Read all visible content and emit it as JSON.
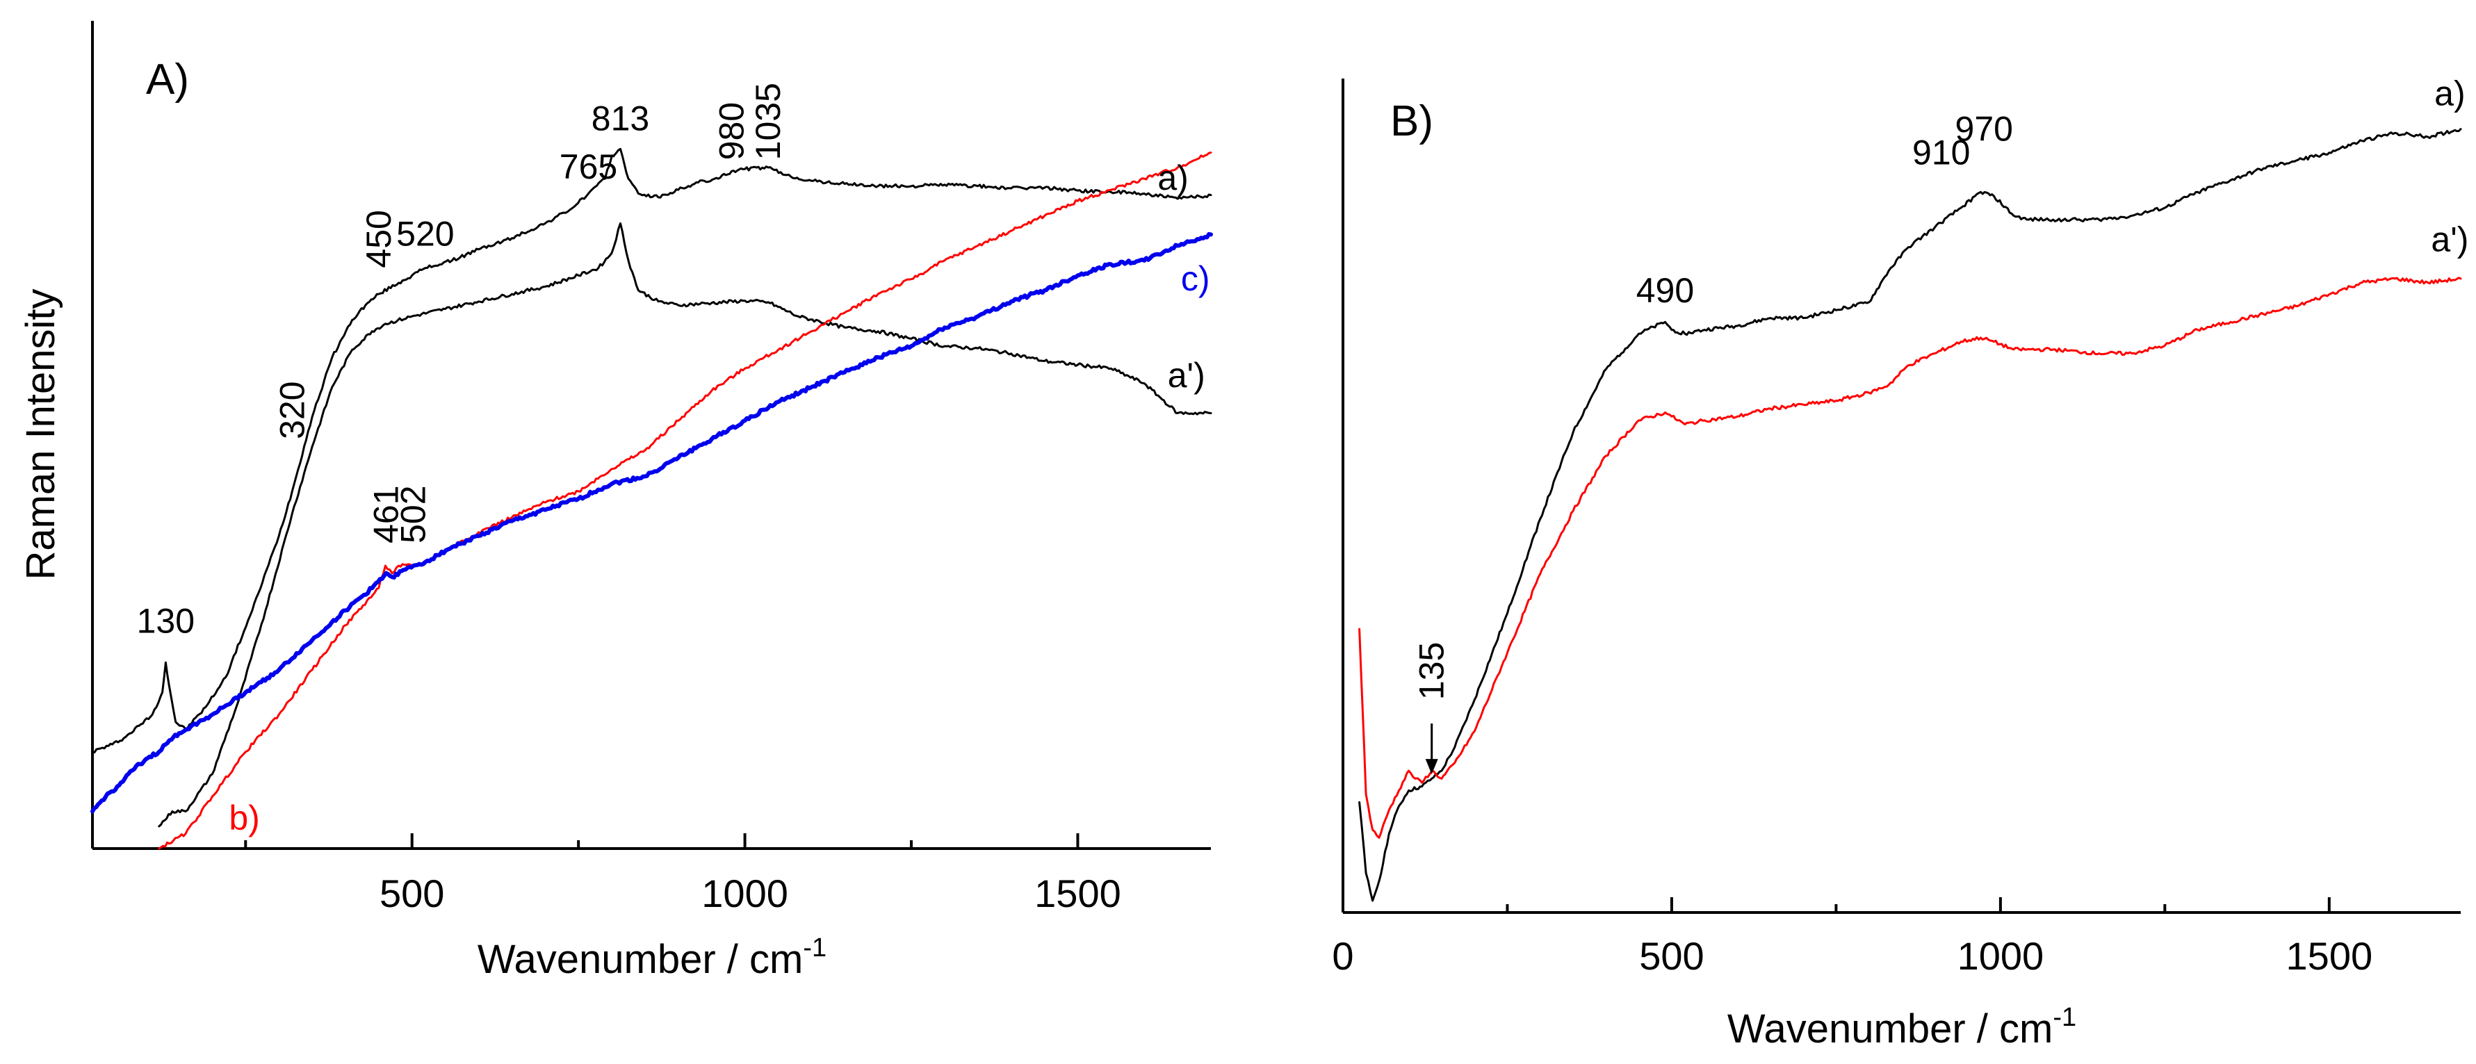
{
  "chart_data": [
    {
      "type": "line",
      "panel": "A)",
      "xlabel": "Wavenumber  /  cm",
      "xlabel_sup": "-1",
      "ylabel": "Raman  Intensity",
      "xlim": [
        20,
        1700
      ],
      "ylim": [
        0,
        100
      ],
      "x_ticks": [
        500,
        1000,
        1500
      ],
      "x_tick_labels": [
        "500",
        "1000",
        "1500"
      ],
      "x_minor_ticks": [
        250,
        750,
        1250
      ],
      "series": [
        {
          "name": "a)",
          "color": "#000000",
          "width": 3,
          "x": [
            20,
            50,
            70,
            90,
            110,
            125,
            130,
            135,
            145,
            160,
            190,
            220,
            260,
            300,
            320,
            350,
            380,
            410,
            430,
            450,
            480,
            500,
            520,
            560,
            600,
            650,
            700,
            740,
            765,
            790,
            800,
            813,
            825,
            840,
            870,
            900,
            930,
            960,
            980,
            1000,
            1035,
            1060,
            1100,
            1150,
            1200,
            1250,
            1300,
            1350,
            1400,
            1450,
            1500,
            1550,
            1600,
            1650,
            1700
          ],
          "y": [
            13,
            14,
            15,
            16.5,
            18,
            21,
            25,
            22,
            17,
            16,
            19,
            23,
            32,
            42,
            48,
            58,
            66,
            71,
            73,
            74.5,
            76,
            77,
            78,
            79,
            80.5,
            82,
            84,
            86,
            88,
            90,
            93,
            94,
            90,
            88,
            87.5,
            88.5,
            89.5,
            90,
            91,
            91.3,
            91.5,
            90.5,
            89.7,
            89.3,
            89,
            89,
            89.2,
            89,
            88.7,
            88.8,
            88.4,
            88.2,
            88,
            87.3,
            87.8
          ]
        },
        {
          "name": "a')",
          "color": "#000000",
          "width": 3,
          "x": [
            120,
            140,
            160,
            200,
            240,
            280,
            320,
            350,
            380,
            410,
            440,
            460,
            500,
            550,
            600,
            650,
            700,
            750,
            780,
            800,
            813,
            825,
            840,
            870,
            900,
            950,
            1000,
            1035,
            1080,
            1150,
            1200,
            1250,
            1300,
            1350,
            1400,
            1450,
            1500,
            1550,
            1600,
            1650,
            1700
          ],
          "y": [
            3,
            5,
            5,
            10,
            20,
            32,
            45,
            54,
            62,
            67,
            69.5,
            70.5,
            71.5,
            72.5,
            73.5,
            74.5,
            75.5,
            77,
            78,
            80,
            84,
            79,
            75,
            73.5,
            73,
            73.3,
            73.6,
            73.4,
            71.5,
            70,
            69.5,
            68.5,
            67.5,
            67.2,
            66.5,
            65.5,
            65,
            64.5,
            62.5,
            58.5,
            58.5
          ]
        },
        {
          "name": "b)",
          "color": "#ff0000",
          "width": 3,
          "x": [
            120,
            160,
            200,
            250,
            300,
            350,
            400,
            450,
            460,
            470,
            480,
            500,
            520,
            560,
            600,
            650,
            700,
            750,
            800,
            850,
            900,
            950,
            1000,
            1050,
            1100,
            1150,
            1200,
            1250,
            1300,
            1350,
            1400,
            1450,
            1500,
            1550,
            1600,
            1650,
            1700
          ],
          "y": [
            0,
            2,
            7,
            13,
            18,
            24,
            30,
            35,
            38,
            37,
            38,
            38,
            38.5,
            40.5,
            42.5,
            44.5,
            46.5,
            48,
            51,
            53.5,
            57.5,
            61.5,
            64.5,
            67,
            69.5,
            72,
            74.5,
            76.5,
            79,
            81,
            83,
            85,
            87,
            88.5,
            90,
            91.5,
            93.5
          ]
        },
        {
          "name": "c)",
          "color": "#0000ee",
          "width": 6,
          "x": [
            20,
            40,
            60,
            80,
            100,
            120,
            130,
            150,
            200,
            250,
            300,
            350,
            400,
            440,
            461,
            470,
            502,
            520,
            560,
            600,
            650,
            700,
            750,
            800,
            850,
            900,
            950,
            1000,
            1050,
            1100,
            1150,
            1200,
            1250,
            1300,
            1350,
            1400,
            1450,
            1500,
            1550,
            1600,
            1650,
            1700
          ],
          "y": [
            5,
            7,
            8.5,
            10.5,
            12,
            13,
            14,
            15.5,
            18,
            21,
            24,
            28,
            32,
            35,
            37,
            36.5,
            38,
            38.5,
            40.5,
            42,
            44,
            45.5,
            47,
            49,
            50,
            52.5,
            55,
            57.5,
            60,
            62,
            64,
            66,
            67.5,
            70,
            71.5,
            73.5,
            75,
            77,
            78.5,
            79,
            81,
            82.5
          ]
        }
      ],
      "annotations": [
        {
          "text": "130",
          "x": 130,
          "y": 29,
          "rotate": false
        },
        {
          "text": "320",
          "x": 320,
          "y": 55,
          "rotate": true
        },
        {
          "text": "450",
          "x": 450,
          "y": 78,
          "rotate": true
        },
        {
          "text": "520",
          "x": 520,
          "y": 81,
          "rotate": false
        },
        {
          "text": "765",
          "x": 765,
          "y": 90,
          "rotate": false
        },
        {
          "text": "813",
          "x": 813,
          "y": 96.5,
          "rotate": false
        },
        {
          "text": "980",
          "x": 980,
          "y": 92.5,
          "rotate": true
        },
        {
          "text": "1035",
          "x": 1035,
          "y": 92.5,
          "rotate": true
        },
        {
          "text": "461",
          "x": 461,
          "y": 41,
          "rotate": true
        },
        {
          "text": "502",
          "x": 502,
          "y": 41,
          "rotate": true
        }
      ],
      "series_labels": [
        {
          "text": "a)",
          "x": 1620,
          "y": 88.5,
          "color": "#000000"
        },
        {
          "text": "c)",
          "x": 1655,
          "y": 75,
          "color": "#0000ee"
        },
        {
          "text": "a')",
          "x": 1635,
          "y": 62,
          "color": "#000000"
        },
        {
          "text": "b)",
          "x": 225,
          "y": 2.5,
          "color": "#ff0000"
        }
      ]
    },
    {
      "type": "line",
      "panel": "B)",
      "xlabel": "Wavenumber  /  cm",
      "xlabel_sup": "-1",
      "ylabel": "",
      "xlim": [
        0,
        1700
      ],
      "ylim": [
        0,
        100
      ],
      "x_ticks": [
        0,
        500,
        1000,
        1500
      ],
      "x_tick_labels": [
        "0",
        "500",
        "1000",
        "1500"
      ],
      "x_minor_ticks": [
        250,
        750,
        1250
      ],
      "series": [
        {
          "name": "a)",
          "color": "#000000",
          "width": 3,
          "x": [
            25,
            35,
            45,
            55,
            70,
            85,
            100,
            120,
            135,
            150,
            170,
            200,
            250,
            300,
            350,
            400,
            450,
            490,
            500,
            520,
            550,
            600,
            650,
            700,
            750,
            800,
            830,
            860,
            900,
            940,
            970,
            990,
            1020,
            1040,
            1080,
            1150,
            1200,
            1250,
            1300,
            1350,
            1400,
            1450,
            1500,
            1550,
            1600,
            1650,
            1700
          ],
          "y": [
            14,
            5,
            1.5,
            4,
            10,
            13.5,
            15.5,
            16,
            17,
            18,
            21,
            27,
            38,
            50,
            61,
            69,
            73.5,
            75,
            74,
            73.5,
            74,
            74.5,
            75.5,
            75.5,
            76.5,
            77.5,
            81.5,
            84.5,
            87,
            89.5,
            91.5,
            91,
            88.5,
            88,
            88,
            88,
            88.5,
            89.5,
            91.5,
            93,
            94.5,
            95.5,
            96.5,
            98,
            99,
            98.5,
            99.5
          ]
        },
        {
          "name": "a')",
          "color": "#ff0000",
          "width": 3,
          "x": [
            25,
            35,
            45,
            55,
            70,
            85,
            100,
            110,
            120,
            135,
            150,
            170,
            200,
            250,
            300,
            350,
            400,
            450,
            490,
            500,
            520,
            550,
            600,
            650,
            700,
            750,
            800,
            830,
            860,
            900,
            940,
            970,
            990,
            1020,
            1040,
            1080,
            1150,
            1200,
            1250,
            1300,
            1350,
            1400,
            1450,
            1500,
            1550,
            1600,
            1650,
            1700
          ],
          "y": [
            36,
            15,
            10.5,
            9.5,
            13,
            15.5,
            18,
            17,
            16.5,
            18,
            17,
            19,
            23,
            33,
            43,
            51,
            58,
            62.5,
            63.5,
            63,
            62,
            62.5,
            63,
            64,
            64.5,
            65,
            66,
            67,
            69.5,
            71,
            72.5,
            73,
            72.5,
            71.5,
            71.5,
            71.5,
            71,
            71,
            72,
            74,
            75,
            76,
            77,
            78.5,
            80,
            80.5,
            80,
            80.5
          ]
        }
      ],
      "annotations": [
        {
          "text": "490",
          "x": 490,
          "y": 77.5,
          "rotate": false
        },
        {
          "text": "910",
          "x": 910,
          "y": 95,
          "rotate": false
        },
        {
          "text": "970",
          "x": 975,
          "y": 98,
          "rotate": false
        },
        {
          "text": "135",
          "x": 135,
          "y": 27,
          "rotate": true
        }
      ],
      "series_labels": [
        {
          "text": "a)",
          "x": 1660,
          "y": 102.5,
          "color": "#000000"
        },
        {
          "text": "a')",
          "x": 1655,
          "y": 84,
          "color": "#000000"
        }
      ]
    }
  ]
}
